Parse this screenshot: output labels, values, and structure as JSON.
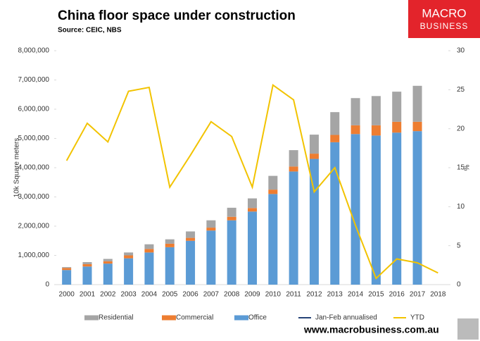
{
  "chart_data": {
    "type": "bar",
    "stacked": true,
    "title": "China floor space under construction",
    "subtitle": "Source: CEIC, NBS",
    "ylabel": "10k Square meters",
    "y2label": "%",
    "categories": [
      "2000",
      "2001",
      "2002",
      "2003",
      "2004",
      "2005",
      "2006",
      "2007",
      "2008",
      "2009",
      "2010",
      "2011",
      "2012",
      "2013",
      "2014",
      "2015",
      "2016",
      "2017",
      "2018"
    ],
    "series": [
      {
        "name": "Residential",
        "color": "#a5a5a5",
        "type": "bar",
        "values": [
          30000,
          70000,
          80000,
          100000,
          160000,
          150000,
          220000,
          250000,
          310000,
          330000,
          470000,
          560000,
          650000,
          780000,
          930000,
          1000000,
          1030000,
          1230000,
          null
        ]
      },
      {
        "name": "Commercial",
        "color": "#ed7d31",
        "type": "bar",
        "values": [
          70000,
          80000,
          80000,
          100000,
          120000,
          120000,
          100000,
          100000,
          120000,
          120000,
          150000,
          170000,
          180000,
          250000,
          300000,
          350000,
          370000,
          320000,
          null
        ]
      },
      {
        "name": "Office",
        "color": "#5b9bd5",
        "type": "bar",
        "values": [
          500000,
          620000,
          720000,
          900000,
          1100000,
          1280000,
          1500000,
          1850000,
          2200000,
          2500000,
          3100000,
          3870000,
          4300000,
          4870000,
          5150000,
          5100000,
          5200000,
          5250000,
          null
        ]
      },
      {
        "name": "Jan-Feb annualised",
        "color": "#264478",
        "type": "line",
        "axis": "y2",
        "values": [
          null,
          null,
          null,
          null,
          null,
          null,
          null,
          null,
          null,
          null,
          null,
          null,
          null,
          null,
          null,
          null,
          null,
          null,
          null
        ]
      },
      {
        "name": "YTD",
        "color": "#f2c300",
        "type": "line",
        "axis": "y2",
        "values": [
          15.9,
          20.7,
          18.3,
          24.8,
          25.3,
          12.5,
          16.6,
          20.9,
          19.0,
          12.5,
          25.6,
          23.7,
          11.9,
          15.0,
          7.6,
          0.8,
          3.3,
          2.8,
          1.5
        ]
      }
    ],
    "ylim": [
      0,
      8000000
    ],
    "yticks": [
      0,
      {
        "value": 1000000,
        "label": "1,000,000"
      },
      {
        "value": 2000000,
        "label": "2,000,000"
      },
      {
        "value": 3000000,
        "label": "3,000,000"
      },
      {
        "value": 4000000,
        "label": "4,000,000"
      },
      {
        "value": 5000000,
        "label": "5,000,000"
      },
      {
        "value": 6000000,
        "label": "6,000,000"
      },
      {
        "value": 7000000,
        "label": "7,000,000"
      },
      {
        "value": 8000000,
        "label": "8,000,000"
      }
    ],
    "y2lim": [
      0,
      30
    ],
    "y2ticks": [
      0,
      5,
      10,
      15,
      20,
      25,
      30
    ],
    "grid": false,
    "legend": "bottom"
  },
  "branding": {
    "logo_top": "MACRO",
    "logo_bottom": "BUSINESS",
    "url": "www.macrobusiness.com.au"
  }
}
